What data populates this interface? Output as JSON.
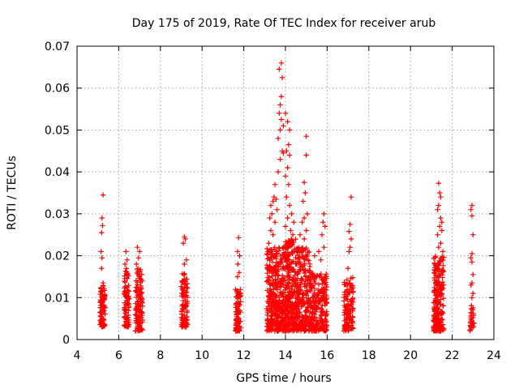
{
  "chart_data": {
    "type": "scatter",
    "title": "Day 175 of 2019, Rate Of TEC Index for receiver arub",
    "xlabel": "GPS time / hours",
    "ylabel": "ROTI / TECUs",
    "xlim": [
      4,
      24
    ],
    "ylim": [
      0,
      0.07
    ],
    "xticks": [
      "4",
      "6",
      "8",
      "10",
      "12",
      "14",
      "16",
      "18",
      "20",
      "22",
      "24"
    ],
    "yticks": [
      "0",
      "0.01",
      "0.02",
      "0.03",
      "0.04",
      "0.05",
      "0.06",
      "0.07"
    ],
    "grid": true,
    "marker": "plus",
    "color": "#ff0000",
    "clusters": [
      {
        "x_range": [
          5.1,
          5.35
        ],
        "y_range": [
          0.003,
          0.013
        ],
        "n": 90,
        "outliers": [
          [
            5.25,
            0.0345
          ],
          [
            5.2,
            0.029
          ],
          [
            5.22,
            0.0272
          ],
          [
            5.18,
            0.0255
          ],
          [
            5.15,
            0.021
          ],
          [
            5.2,
            0.0195
          ],
          [
            5.18,
            0.017
          ],
          [
            5.25,
            0.0135
          ]
        ]
      },
      {
        "x_range": [
          6.25,
          6.5
        ],
        "y_range": [
          0.003,
          0.017
        ],
        "n": 90,
        "outliers": [
          [
            6.35,
            0.021
          ],
          [
            6.4,
            0.019
          ],
          [
            6.3,
            0.018
          ]
        ]
      },
      {
        "x_range": [
          6.8,
          7.15
        ],
        "y_range": [
          0.002,
          0.017
        ],
        "n": 120,
        "outliers": [
          [
            6.9,
            0.022
          ],
          [
            7.0,
            0.021
          ],
          [
            6.95,
            0.0195
          ],
          [
            6.85,
            0.018
          ]
        ]
      },
      {
        "x_range": [
          9.0,
          9.3
        ],
        "y_range": [
          0.003,
          0.016
        ],
        "n": 90,
        "outliers": [
          [
            9.15,
            0.0245
          ],
          [
            9.2,
            0.024
          ],
          [
            9.1,
            0.023
          ],
          [
            9.25,
            0.019
          ],
          [
            9.15,
            0.018
          ]
        ]
      },
      {
        "x_range": [
          11.6,
          11.85
        ],
        "y_range": [
          0.002,
          0.012
        ],
        "n": 80,
        "outliers": [
          [
            11.75,
            0.0243
          ],
          [
            11.7,
            0.021
          ],
          [
            11.8,
            0.02
          ],
          [
            11.72,
            0.018
          ],
          [
            11.78,
            0.016
          ],
          [
            11.7,
            0.015
          ]
        ]
      },
      {
        "x_range": [
          13.1,
          13.9
        ],
        "y_range": [
          0.002,
          0.022
        ],
        "n": 320,
        "outliers": [
          [
            13.7,
            0.0645
          ],
          [
            13.8,
            0.066
          ],
          [
            13.85,
            0.0625
          ],
          [
            13.8,
            0.058
          ],
          [
            13.75,
            0.056
          ],
          [
            13.7,
            0.054
          ],
          [
            13.8,
            0.0525
          ],
          [
            13.9,
            0.051
          ],
          [
            13.75,
            0.05
          ],
          [
            13.65,
            0.048
          ],
          [
            13.85,
            0.045
          ],
          [
            13.9,
            0.0445
          ],
          [
            13.75,
            0.043
          ],
          [
            13.65,
            0.04
          ],
          [
            13.5,
            0.037
          ],
          [
            13.45,
            0.034
          ],
          [
            13.4,
            0.033
          ],
          [
            13.3,
            0.032
          ],
          [
            13.35,
            0.03
          ],
          [
            13.25,
            0.029
          ],
          [
            13.5,
            0.028
          ],
          [
            13.3,
            0.026
          ],
          [
            13.4,
            0.025
          ],
          [
            13.6,
            0.031
          ],
          [
            13.2,
            0.023
          ],
          [
            13.55,
            0.0335
          ]
        ]
      },
      {
        "x_range": [
          13.9,
          14.5
        ],
        "y_range": [
          0.002,
          0.024
        ],
        "n": 260,
        "outliers": [
          [
            14.0,
            0.054
          ],
          [
            14.1,
            0.052
          ],
          [
            14.2,
            0.05
          ],
          [
            14.15,
            0.0465
          ],
          [
            14.05,
            0.045
          ],
          [
            14.2,
            0.044
          ],
          [
            14.1,
            0.041
          ],
          [
            14.0,
            0.039
          ],
          [
            14.15,
            0.037
          ],
          [
            14.05,
            0.034
          ],
          [
            14.2,
            0.032
          ],
          [
            14.3,
            0.03
          ],
          [
            14.1,
            0.029
          ],
          [
            14.4,
            0.028
          ],
          [
            14.0,
            0.027
          ],
          [
            14.25,
            0.026
          ],
          [
            14.35,
            0.025
          ]
        ]
      },
      {
        "x_range": [
          14.5,
          15.2
        ],
        "y_range": [
          0.002,
          0.022
        ],
        "n": 240,
        "outliers": [
          [
            15.0,
            0.0485
          ],
          [
            15.0,
            0.044
          ],
          [
            14.9,
            0.0375
          ],
          [
            14.95,
            0.035
          ],
          [
            14.85,
            0.033
          ],
          [
            15.05,
            0.03
          ],
          [
            14.9,
            0.029
          ],
          [
            14.8,
            0.028
          ],
          [
            15.0,
            0.026
          ],
          [
            14.7,
            0.025
          ],
          [
            14.9,
            0.024
          ]
        ]
      },
      {
        "x_range": [
          15.2,
          16.0
        ],
        "y_range": [
          0.002,
          0.016
        ],
        "n": 220,
        "outliers": [
          [
            15.85,
            0.03
          ],
          [
            15.8,
            0.028
          ],
          [
            15.9,
            0.027
          ],
          [
            15.75,
            0.025
          ],
          [
            15.85,
            0.022
          ],
          [
            15.6,
            0.021
          ],
          [
            15.4,
            0.02
          ],
          [
            15.7,
            0.019
          ]
        ]
      },
      {
        "x_range": [
          16.8,
          17.25
        ],
        "y_range": [
          0.002,
          0.015
        ],
        "n": 120,
        "outliers": [
          [
            17.15,
            0.034
          ],
          [
            17.1,
            0.0275
          ],
          [
            17.05,
            0.0258
          ],
          [
            17.15,
            0.024
          ],
          [
            17.1,
            0.022
          ],
          [
            17.05,
            0.021
          ],
          [
            17.0,
            0.017
          ]
        ]
      },
      {
        "x_range": [
          21.1,
          21.6
        ],
        "y_range": [
          0.002,
          0.02
        ],
        "n": 220,
        "outliers": [
          [
            21.35,
            0.0373
          ],
          [
            21.4,
            0.035
          ],
          [
            21.45,
            0.034
          ],
          [
            21.35,
            0.032
          ],
          [
            21.3,
            0.031
          ],
          [
            21.45,
            0.029
          ],
          [
            21.5,
            0.028
          ],
          [
            21.4,
            0.027
          ],
          [
            21.5,
            0.026
          ],
          [
            21.3,
            0.025
          ],
          [
            21.45,
            0.023
          ],
          [
            21.35,
            0.022
          ],
          [
            21.55,
            0.021
          ]
        ]
      },
      {
        "x_range": [
          22.85,
          23.05
        ],
        "y_range": [
          0.002,
          0.009
        ],
        "n": 30,
        "outliers": [
          [
            22.95,
            0.032
          ],
          [
            22.9,
            0.031
          ],
          [
            22.95,
            0.0295
          ],
          [
            23.0,
            0.025
          ],
          [
            22.95,
            0.0205
          ],
          [
            22.9,
            0.0195
          ],
          [
            22.95,
            0.0185
          ],
          [
            23.0,
            0.0155
          ],
          [
            22.95,
            0.0135
          ],
          [
            22.9,
            0.013
          ],
          [
            23.0,
            0.011
          ],
          [
            22.95,
            0.01
          ]
        ]
      }
    ]
  }
}
